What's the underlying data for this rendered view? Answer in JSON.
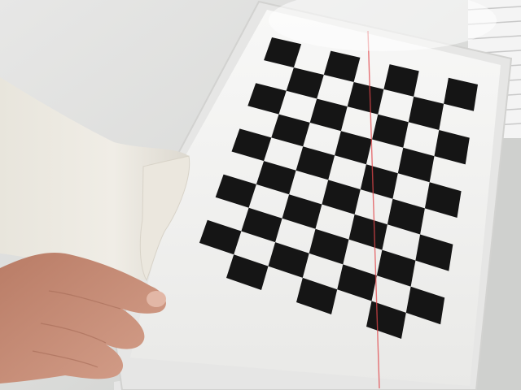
{
  "scene": {
    "subject": "calibration-checkerboard",
    "pattern": {
      "rows": 10,
      "cols": 7
    },
    "colors": {
      "wall": "#e4e4e3",
      "wall_shadow": "#c9cac8",
      "board_paper": "#f2f2f0",
      "board_sleeve": "#e9e9e8",
      "square": "#151515",
      "sleeve_cloth": "#ece9e1",
      "skin": "#c9907a",
      "laser": "#e2474b"
    }
  }
}
